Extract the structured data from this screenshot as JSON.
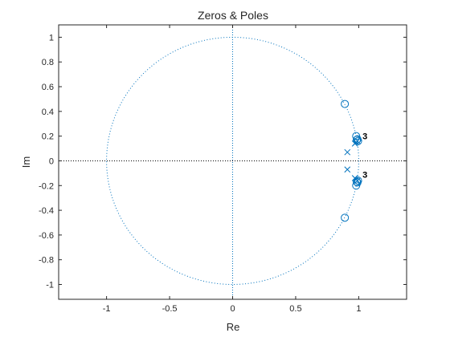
{
  "chart_data": {
    "type": "scatter",
    "title": "Zeros & Poles",
    "xlabel": "Re",
    "ylabel": "Im",
    "xlim": [
      -1.38,
      1.38
    ],
    "ylim": [
      -1.12,
      1.1
    ],
    "xticks": [
      -1,
      -0.5,
      0,
      0.5,
      1
    ],
    "xtick_labels": [
      "-1",
      "-0.5",
      "0",
      "0.5",
      "1"
    ],
    "yticks": [
      1,
      0.8,
      0.6,
      0.4,
      0.2,
      0,
      -0.2,
      -0.4,
      -0.6,
      -0.8,
      -1
    ],
    "ytick_labels": [
      "1",
      "0.8",
      "0.6",
      "0.4",
      "0.2",
      "0",
      "-0.2",
      "-0.4",
      "-0.6",
      "-0.8",
      "-1"
    ],
    "grid": false,
    "unit_circle": true,
    "series": [
      {
        "marker": "circle",
        "points": [
          {
            "x": 0.89,
            "y": 0.46
          },
          {
            "x": 0.98,
            "y": 0.2
          },
          {
            "x": 0.985,
            "y": 0.17
          },
          {
            "x": 0.995,
            "y": 0.16
          },
          {
            "x": 0.99,
            "y": 0.175
          },
          {
            "x": 0.89,
            "y": -0.46
          },
          {
            "x": 0.98,
            "y": -0.2
          },
          {
            "x": 0.985,
            "y": -0.17
          },
          {
            "x": 0.995,
            "y": -0.16
          },
          {
            "x": 0.99,
            "y": -0.175
          }
        ]
      },
      {
        "marker": "x",
        "points": [
          {
            "x": 0.91,
            "y": 0.07
          },
          {
            "x": 0.97,
            "y": 0.14
          },
          {
            "x": 0.98,
            "y": 0.15
          },
          {
            "x": 0.99,
            "y": 0.16
          },
          {
            "x": 0.91,
            "y": -0.07
          },
          {
            "x": 0.97,
            "y": -0.14
          },
          {
            "x": 0.98,
            "y": -0.15
          },
          {
            "x": 0.99,
            "y": -0.16
          }
        ]
      }
    ],
    "annotations": [
      {
        "text": "3",
        "x": 1.03,
        "y": 0.2
      },
      {
        "text": "3",
        "x": 1.03,
        "y": -0.11
      }
    ],
    "colors": {
      "marker": "#0072bd",
      "axes": "#262626",
      "zero_line": "#000000"
    }
  }
}
